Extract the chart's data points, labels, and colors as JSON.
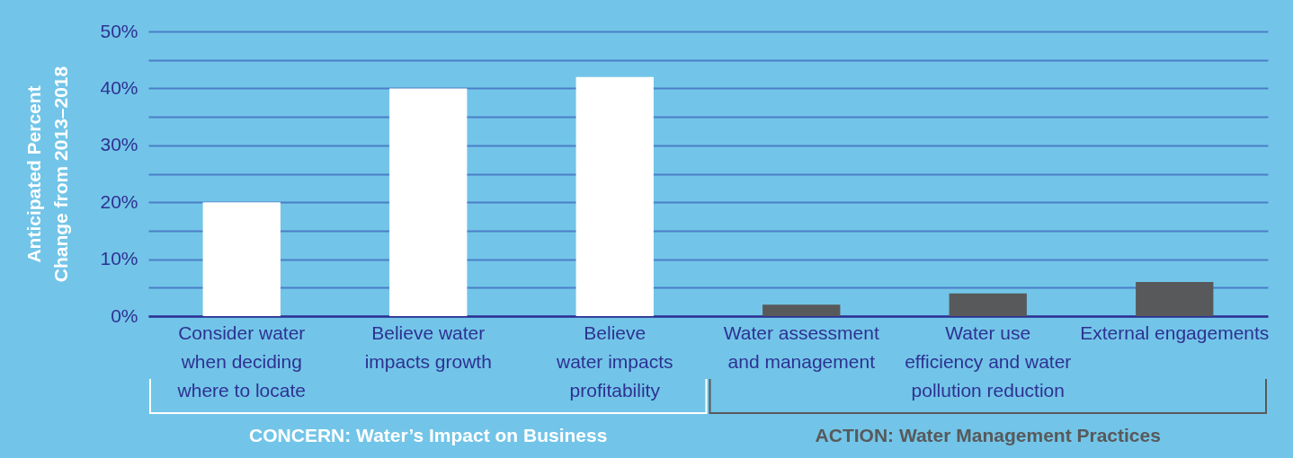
{
  "chart_data": {
    "type": "bar",
    "ylabel": "Anticipated Percent Change from 2013–2018",
    "categories": [
      "Consider water when deciding where to locate",
      "Believe water impacts growth",
      "Believe water impacts profitability",
      "Water assessment and management",
      "Water use efficiency and water pollution reduction",
      "External engagements"
    ],
    "values": [
      20,
      40,
      42,
      2,
      4,
      6
    ],
    "colors": [
      "#ffffff",
      "#ffffff",
      "#ffffff",
      "#58595b",
      "#58595b",
      "#58595b"
    ],
    "ylim": [
      0,
      50
    ],
    "yticks": [
      {
        "value": 0,
        "label": "0%"
      },
      {
        "value": 5,
        "label": null
      },
      {
        "value": 10,
        "label": "10%"
      },
      {
        "value": 15,
        "label": null
      },
      {
        "value": 20,
        "label": "20%"
      },
      {
        "value": 25,
        "label": null
      },
      {
        "value": 30,
        "label": "30%"
      },
      {
        "value": 35,
        "label": null
      },
      {
        "value": 40,
        "label": "40%"
      },
      {
        "value": 45,
        "label": null
      },
      {
        "value": 50,
        "label": "50%"
      }
    ],
    "grid": true,
    "annotations": [
      "CONCERN: Water’s Impact on Business",
      "ACTION: Water Management Practices"
    ]
  }
}
